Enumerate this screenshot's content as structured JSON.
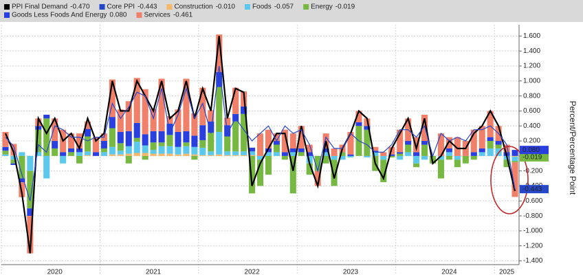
{
  "chart_data": {
    "type": "bar",
    "stacked": true,
    "y_axis_title": "Percent/Percentage Point",
    "categories": [
      null,
      null,
      null,
      null,
      null,
      null,
      "2020",
      null,
      null,
      null,
      null,
      null,
      null,
      null,
      null,
      null,
      null,
      null,
      "2021",
      null,
      null,
      null,
      null,
      null,
      null,
      null,
      null,
      null,
      null,
      null,
      "2022",
      null,
      null,
      null,
      null,
      null,
      null,
      null,
      null,
      null,
      null,
      null,
      "2023",
      null,
      null,
      null,
      null,
      null,
      null,
      null,
      null,
      null,
      null,
      null,
      "2024",
      null,
      null,
      null,
      null,
      null,
      null,
      "2025",
      null
    ],
    "ylim": [
      -1.45,
      1.75
    ],
    "yticks": [
      {
        "value": -1.4,
        "label": "-1.400"
      },
      {
        "value": -1.2,
        "label": "-1.200"
      },
      {
        "value": -1.0,
        "label": "-1.000"
      },
      {
        "value": -0.8,
        "label": "-0.800"
      },
      {
        "value": -0.6,
        "label": "-0.600"
      },
      {
        "value": -0.4,
        "label": "-0.400"
      },
      {
        "value": -0.2,
        "label": "-0.200"
      },
      {
        "value": 0,
        "label": "0.000"
      },
      {
        "value": 0.2,
        "label": "0.200"
      },
      {
        "value": 0.4,
        "label": "0.400"
      },
      {
        "value": 0.6,
        "label": "0.600"
      },
      {
        "value": 0.8,
        "label": "0.800"
      },
      {
        "value": 1.0,
        "label": "1.000"
      },
      {
        "value": 1.2,
        "label": "1.200"
      },
      {
        "value": 1.4,
        "label": "1.400"
      },
      {
        "value": 1.6,
        "label": "1.600"
      }
    ],
    "grid": true,
    "series": [
      {
        "name": "PPI Final Demand",
        "last_label": "-0.470",
        "type": "line",
        "color": "#000000",
        "tagged": false,
        "values": [
          0.3,
          0.05,
          -0.5,
          -1.3,
          0.5,
          0.3,
          0.5,
          0.2,
          0.3,
          0.1,
          0.5,
          0.2,
          0.3,
          1.0,
          0.6,
          0.6,
          1.0,
          0.8,
          0.6,
          1.0,
          0.5,
          0.6,
          1.0,
          0.5,
          0.9,
          0.6,
          1.6,
          0.5,
          0.9,
          0.85,
          -0.4,
          -0.1,
          0.1,
          0.3,
          0.3,
          -0.2,
          0.4,
          -0.1,
          -0.4,
          0.2,
          -0.3,
          0.1,
          0.3,
          0.6,
          0.5,
          -0.1,
          -0.3,
          0.1,
          0.3,
          0.5,
          0.1,
          0.5,
          -0.1,
          0.0,
          0.2,
          0.1,
          0.1,
          0.3,
          0.4,
          0.6,
          0.4,
          0.0,
          -0.47
        ]
      },
      {
        "name": "Core PPI",
        "last_label": "-0.443",
        "type": "line",
        "color": "#2747c9",
        "tagged": true,
        "values": [
          0.25,
          0.13,
          -0.25,
          -0.6,
          0.15,
          0.05,
          0.4,
          0.35,
          0.25,
          0.25,
          0.2,
          0.25,
          0.25,
          0.7,
          0.5,
          0.65,
          0.85,
          0.8,
          0.5,
          0.9,
          0.3,
          0.55,
          0.9,
          0.5,
          0.7,
          0.3,
          1.2,
          0.3,
          0.5,
          0.35,
          0.2,
          0.3,
          0.4,
          0.2,
          0.4,
          0.3,
          0.35,
          0.15,
          -0.2,
          0.25,
          0.1,
          0.1,
          0.3,
          0.2,
          0.15,
          0.05,
          0.05,
          0.15,
          0.35,
          0.35,
          0.25,
          0.4,
          0.0,
          0.3,
          0.2,
          0.25,
          0.2,
          0.35,
          0.35,
          0.4,
          0.3,
          0.15,
          -0.443
        ]
      },
      {
        "name": "Construction",
        "last_label": "-0.010",
        "type": "bar",
        "color": "#f5b86a",
        "tagged": false,
        "values": [
          0,
          0.01,
          0,
          0,
          0,
          0,
          0,
          0,
          0,
          0,
          0.01,
          0,
          0,
          0.02,
          0.02,
          0.03,
          0.04,
          0.04,
          0.03,
          0.03,
          0.03,
          0.02,
          0.03,
          0.02,
          0.01,
          0.01,
          0.02,
          0.01,
          0.01,
          0.01,
          0.01,
          0,
          0,
          0,
          0,
          0,
          0,
          0,
          0,
          0,
          0,
          0,
          0,
          0,
          0,
          0,
          0,
          0,
          0,
          0,
          0,
          0,
          0,
          0,
          0,
          0,
          0,
          0,
          0,
          0,
          0,
          0,
          -0.01
        ]
      },
      {
        "name": "Foods",
        "last_label": "-0.057",
        "type": "bar",
        "color": "#5bc8ec",
        "tagged": false,
        "values": [
          0.02,
          -0.05,
          0.05,
          -0.2,
          0.05,
          -0.3,
          0,
          -0.1,
          0,
          0.05,
          0.05,
          0,
          0.05,
          0.1,
          0.05,
          0.1,
          0.15,
          0.1,
          0.05,
          0.1,
          0.1,
          0.1,
          0.1,
          0.1,
          0.1,
          0.05,
          0.3,
          0.05,
          0.05,
          0.05,
          0.05,
          -0.05,
          0.05,
          0.05,
          0,
          0.05,
          0,
          -0.1,
          0,
          0.05,
          -0.05,
          -0.05,
          -0.02,
          0,
          -0.02,
          0.05,
          -0.05,
          0,
          -0.05,
          0.05,
          -0.1,
          -0.05,
          0,
          -0.05,
          0.05,
          -0.05,
          0,
          0,
          0.05,
          0.1,
          0.1,
          -0.05,
          -0.057
        ]
      },
      {
        "name": "Energy",
        "last_label": "-0.019",
        "type": "bar",
        "color": "#77b843",
        "tagged": true,
        "values": [
          0.05,
          -0.05,
          -0.3,
          -0.5,
          0.3,
          0.5,
          0.1,
          0,
          0.05,
          -0.1,
          0.2,
          0,
          0.05,
          0.25,
          0.1,
          -0.1,
          0.05,
          -0.05,
          0.1,
          0.05,
          0.15,
          0,
          0.05,
          -0.05,
          0.1,
          0.25,
          0.6,
          0.2,
          0.4,
          0.5,
          -0.5,
          -0.35,
          -0.25,
          0.1,
          -0.05,
          -0.5,
          0.05,
          -0.15,
          -0.2,
          -0.1,
          -0.35,
          0.05,
          0,
          0.4,
          0.35,
          -0.2,
          -0.3,
          -0.02,
          0.03,
          0.1,
          -0.05,
          0.15,
          -0.1,
          -0.25,
          -0.05,
          -0.1,
          -0.1,
          -0.05,
          0,
          0.1,
          0.05,
          -0.1,
          -0.019
        ]
      },
      {
        "name": "Goods Less Foods And Energy",
        "last_label": "0.080",
        "type": "bar",
        "color": "#2a3fe0",
        "tagged": true,
        "values": [
          0.05,
          -0.02,
          -0.05,
          -0.1,
          0.05,
          0.05,
          0.1,
          0.05,
          0.05,
          0.05,
          0.1,
          0.05,
          0.1,
          0.15,
          0.15,
          0.2,
          0.2,
          0.15,
          0.15,
          0.15,
          0.15,
          0.2,
          0.15,
          0.15,
          0.2,
          0.15,
          0.2,
          0.15,
          0.1,
          0.1,
          0.05,
          0,
          0.05,
          0.05,
          0.05,
          0.05,
          0.05,
          0.05,
          0,
          0.05,
          0,
          0,
          0.02,
          0.05,
          0.05,
          0.02,
          0,
          0.02,
          0.02,
          0.05,
          0.05,
          0.05,
          0,
          0,
          0.05,
          0,
          0,
          0.05,
          0.05,
          0.05,
          0.05,
          0.05,
          0.08
        ]
      },
      {
        "name": "Services",
        "last_label": "-0.461",
        "type": "bar",
        "color": "#f0806a",
        "tagged": false,
        "values": [
          0.2,
          0.15,
          -0.2,
          -0.5,
          0.1,
          0,
          0.3,
          0.3,
          0.2,
          0.2,
          0.1,
          0.2,
          0.1,
          0.5,
          0.3,
          0.4,
          0.6,
          0.6,
          0.3,
          0.7,
          0.1,
          0.3,
          0.7,
          0.3,
          0.5,
          0.15,
          0.5,
          0.1,
          0.35,
          0.2,
          0,
          0.3,
          0.25,
          0.1,
          0.3,
          0.2,
          0.3,
          0.1,
          -0.2,
          0.2,
          0.1,
          0.1,
          0.3,
          0.15,
          0.1,
          0.05,
          0.05,
          0.1,
          0.3,
          0.3,
          0.2,
          0.35,
          0,
          0.3,
          0.15,
          0.25,
          0.2,
          0.3,
          0.3,
          0.35,
          0.2,
          0.1,
          -0.461
        ]
      }
    ]
  }
}
